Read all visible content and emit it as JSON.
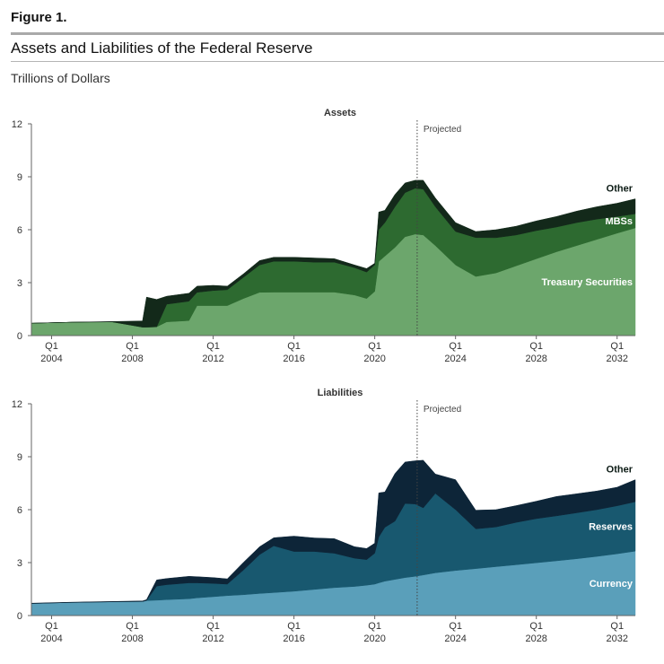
{
  "figure_label": "Figure 1.",
  "figure_title": "Assets and Liabilities of the Federal Reserve",
  "units": "Trillions of Dollars",
  "projected_label": "Projected",
  "colors": {
    "assets": [
      "#6ca66c",
      "#2d6a30",
      "#13291a"
    ],
    "liabilities": [
      "#5a9fba",
      "#18586f",
      "#0d2538"
    ]
  },
  "chart_data": [
    {
      "type": "area",
      "stacked": true,
      "title": "Assets",
      "ylim": [
        0,
        12
      ],
      "yticks": [
        0,
        3,
        6,
        9,
        12
      ],
      "xlim": [
        2003.0,
        2032.9
      ],
      "xticks": [
        {
          "x": 2004,
          "q": "Q1",
          "year": "2004"
        },
        {
          "x": 2008,
          "q": "Q1",
          "year": "2008"
        },
        {
          "x": 2012,
          "q": "Q1",
          "year": "2012"
        },
        {
          "x": 2016,
          "q": "Q1",
          "year": "2016"
        },
        {
          "x": 2020,
          "q": "Q1",
          "year": "2020"
        },
        {
          "x": 2024,
          "q": "Q1",
          "year": "2024"
        },
        {
          "x": 2028,
          "q": "Q1",
          "year": "2028"
        },
        {
          "x": 2032,
          "q": "Q1",
          "year": "2032"
        }
      ],
      "projected_start": 2022.1,
      "x": [
        2003.0,
        2005.0,
        2007.0,
        2008.5,
        2008.7,
        2009.2,
        2009.7,
        2010.8,
        2011.2,
        2012.0,
        2012.7,
        2013.5,
        2014.3,
        2015.0,
        2016.0,
        2017.0,
        2018.0,
        2019.0,
        2019.6,
        2020.0,
        2020.2,
        2020.5,
        2021.0,
        2021.5,
        2022.0,
        2022.4,
        2023.0,
        2024.0,
        2025.0,
        2026.0,
        2027.0,
        2028.0,
        2029.0,
        2030.0,
        2031.0,
        2032.0,
        2032.9
      ],
      "series": [
        {
          "name": "Treasury Securities",
          "values": [
            0.7,
            0.76,
            0.78,
            0.48,
            0.48,
            0.5,
            0.78,
            0.85,
            1.7,
            1.7,
            1.7,
            2.1,
            2.45,
            2.46,
            2.46,
            2.46,
            2.46,
            2.3,
            2.1,
            2.5,
            4.2,
            4.5,
            5.0,
            5.6,
            5.75,
            5.7,
            5.1,
            4.0,
            3.35,
            3.55,
            3.95,
            4.35,
            4.75,
            5.1,
            5.45,
            5.8,
            6.1
          ]
        },
        {
          "name": "MBSs",
          "values": [
            0.0,
            0.0,
            0.0,
            0.0,
            0.0,
            0.0,
            1.0,
            1.1,
            0.75,
            0.85,
            0.9,
            1.2,
            1.55,
            1.75,
            1.75,
            1.7,
            1.7,
            1.55,
            1.5,
            1.5,
            1.8,
            1.9,
            2.3,
            2.5,
            2.6,
            2.6,
            2.2,
            1.9,
            2.2,
            2.0,
            1.75,
            1.6,
            1.4,
            1.3,
            1.15,
            0.95,
            0.8
          ]
        },
        {
          "name": "Other",
          "values": [
            0.0,
            0.0,
            0.02,
            0.35,
            1.7,
            1.55,
            0.45,
            0.45,
            0.35,
            0.3,
            0.2,
            0.2,
            0.25,
            0.23,
            0.23,
            0.24,
            0.2,
            0.15,
            0.2,
            0.1,
            1.0,
            0.7,
            0.7,
            0.55,
            0.45,
            0.5,
            0.5,
            0.5,
            0.35,
            0.45,
            0.5,
            0.55,
            0.6,
            0.65,
            0.7,
            0.75,
            0.85
          ]
        }
      ]
    },
    {
      "type": "area",
      "stacked": true,
      "title": "Liabilities",
      "ylim": [
        0,
        12
      ],
      "yticks": [
        0,
        3,
        6,
        9,
        12
      ],
      "xlim": [
        2003.0,
        2032.9
      ],
      "xticks": [
        {
          "x": 2004,
          "q": "Q1",
          "year": "2004"
        },
        {
          "x": 2008,
          "q": "Q1",
          "year": "2008"
        },
        {
          "x": 2012,
          "q": "Q1",
          "year": "2012"
        },
        {
          "x": 2016,
          "q": "Q1",
          "year": "2016"
        },
        {
          "x": 2020,
          "q": "Q1",
          "year": "2020"
        },
        {
          "x": 2024,
          "q": "Q1",
          "year": "2024"
        },
        {
          "x": 2028,
          "q": "Q1",
          "year": "2028"
        },
        {
          "x": 2032,
          "q": "Q1",
          "year": "2032"
        }
      ],
      "projected_start": 2022.1,
      "x": [
        2003.0,
        2005.0,
        2007.0,
        2008.5,
        2008.7,
        2009.2,
        2009.7,
        2010.8,
        2011.2,
        2012.0,
        2012.7,
        2013.5,
        2014.3,
        2015.0,
        2016.0,
        2017.0,
        2018.0,
        2019.0,
        2019.6,
        2020.0,
        2020.2,
        2020.5,
        2021.0,
        2021.5,
        2022.0,
        2022.4,
        2023.0,
        2024.0,
        2025.0,
        2026.0,
        2027.0,
        2028.0,
        2029.0,
        2030.0,
        2031.0,
        2032.0,
        2032.9
      ],
      "series": [
        {
          "name": "Currency",
          "values": [
            0.68,
            0.74,
            0.78,
            0.8,
            0.85,
            0.87,
            0.9,
            0.95,
            1.0,
            1.07,
            1.13,
            1.18,
            1.25,
            1.3,
            1.38,
            1.48,
            1.58,
            1.65,
            1.72,
            1.78,
            1.85,
            1.95,
            2.05,
            2.15,
            2.22,
            2.3,
            2.42,
            2.55,
            2.66,
            2.77,
            2.88,
            2.99,
            3.1,
            3.22,
            3.35,
            3.5,
            3.65
          ]
        },
        {
          "name": "Reserves",
          "values": [
            0.0,
            0.0,
            0.0,
            0.0,
            0.0,
            0.8,
            0.85,
            0.9,
            0.85,
            0.75,
            0.65,
            1.4,
            2.2,
            2.65,
            2.25,
            2.15,
            1.95,
            1.6,
            1.45,
            1.75,
            2.6,
            3.05,
            3.3,
            4.2,
            4.1,
            3.8,
            4.5,
            3.45,
            2.25,
            2.25,
            2.4,
            2.5,
            2.55,
            2.6,
            2.65,
            2.72,
            2.8
          ]
        },
        {
          "name": "Other",
          "values": [
            0.02,
            0.02,
            0.02,
            0.03,
            0.05,
            0.35,
            0.35,
            0.37,
            0.35,
            0.33,
            0.3,
            0.43,
            0.45,
            0.46,
            0.87,
            0.77,
            0.83,
            0.65,
            0.63,
            0.57,
            2.5,
            2.0,
            2.7,
            2.35,
            2.45,
            2.7,
            1.1,
            1.7,
            1.06,
            0.98,
            0.95,
            0.99,
            1.1,
            1.08,
            1.06,
            1.05,
            1.25
          ]
        }
      ]
    }
  ]
}
